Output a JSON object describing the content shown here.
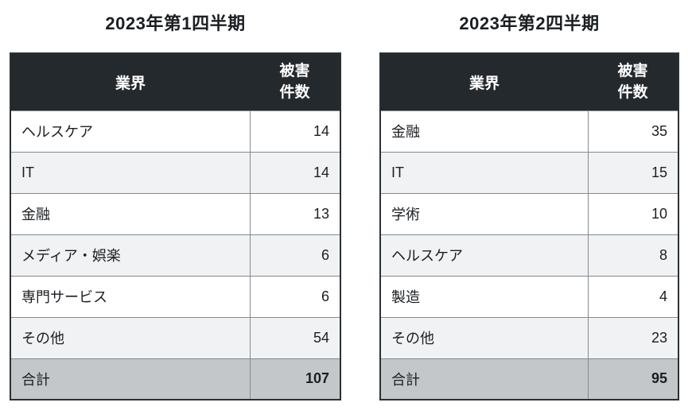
{
  "tables": [
    {
      "title": "2023年第1四半期",
      "header": {
        "industry": "業界",
        "count": "被害\n件数"
      },
      "rows": [
        {
          "industry": "ヘルスケア",
          "count": "14"
        },
        {
          "industry": "IT",
          "count": "14"
        },
        {
          "industry": "金融",
          "count": "13"
        },
        {
          "industry": "メディア・娯楽",
          "count": "6"
        },
        {
          "industry": "専門サービス",
          "count": "6"
        },
        {
          "industry": "その他",
          "count": "54"
        }
      ],
      "total": {
        "label": "合計",
        "count": "107"
      }
    },
    {
      "title": "2023年第2四半期",
      "header": {
        "industry": "業界",
        "count": "被害\n件数"
      },
      "rows": [
        {
          "industry": "金融",
          "count": "35"
        },
        {
          "industry": "IT",
          "count": "15"
        },
        {
          "industry": "学術",
          "count": "10"
        },
        {
          "industry": "ヘルスケア",
          "count": "8"
        },
        {
          "industry": "製造",
          "count": "4"
        },
        {
          "industry": "その他",
          "count": "23"
        }
      ],
      "total": {
        "label": "合計",
        "count": "95"
      }
    }
  ],
  "chart_data": [
    {
      "type": "table",
      "title": "2023年第1四半期",
      "columns": [
        "業界",
        "被害件数"
      ],
      "rows": [
        [
          "ヘルスケア",
          14
        ],
        [
          "IT",
          14
        ],
        [
          "金融",
          13
        ],
        [
          "メディア・娯楽",
          6
        ],
        [
          "専門サービス",
          6
        ],
        [
          "その他",
          54
        ]
      ],
      "total": [
        "合計",
        107
      ]
    },
    {
      "type": "table",
      "title": "2023年第2四半期",
      "columns": [
        "業界",
        "被害件数"
      ],
      "rows": [
        [
          "金融",
          35
        ],
        [
          "IT",
          15
        ],
        [
          "学術",
          10
        ],
        [
          "ヘルスケア",
          8
        ],
        [
          "製造",
          4
        ],
        [
          "その他",
          23
        ]
      ],
      "total": [
        "合計",
        95
      ]
    }
  ],
  "colors": {
    "header_bg": "#24292e",
    "header_text": "#ffffff",
    "row_alt_bg": "#f1f2f4",
    "total_bg": "#c3c7c9",
    "border_outer": "#2b3036",
    "border_inner": "#85898d",
    "text": "#1b1e22",
    "page_bg": "#ffffff"
  }
}
